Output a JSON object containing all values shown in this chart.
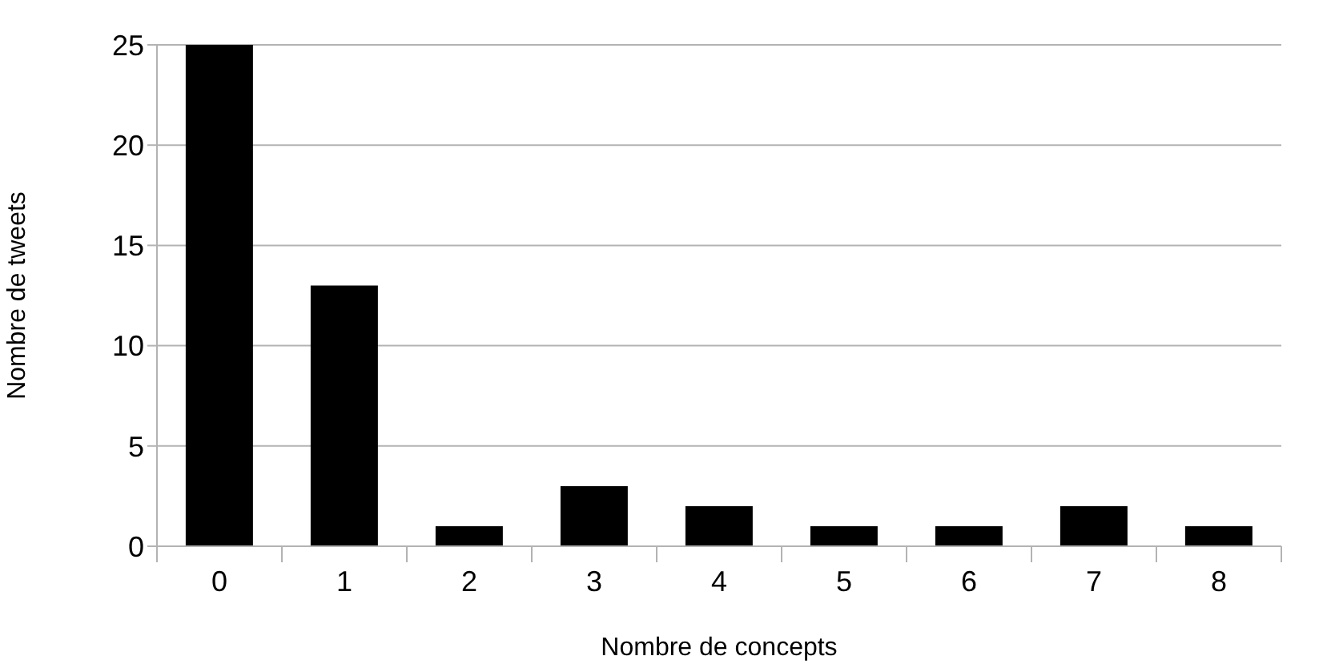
{
  "chart_data": {
    "type": "bar",
    "xlabel": "Nombre de concepts",
    "ylabel": "Nombre de tweets",
    "categories": [
      "0",
      "1",
      "2",
      "3",
      "4",
      "5",
      "6",
      "7",
      "8"
    ],
    "values": [
      25,
      13,
      1,
      3,
      2,
      1,
      1,
      2,
      1
    ],
    "color": "#000000",
    "ylim": [
      0,
      25
    ],
    "yticks": [
      0,
      5,
      10,
      15,
      20,
      25
    ],
    "grid": "y"
  }
}
